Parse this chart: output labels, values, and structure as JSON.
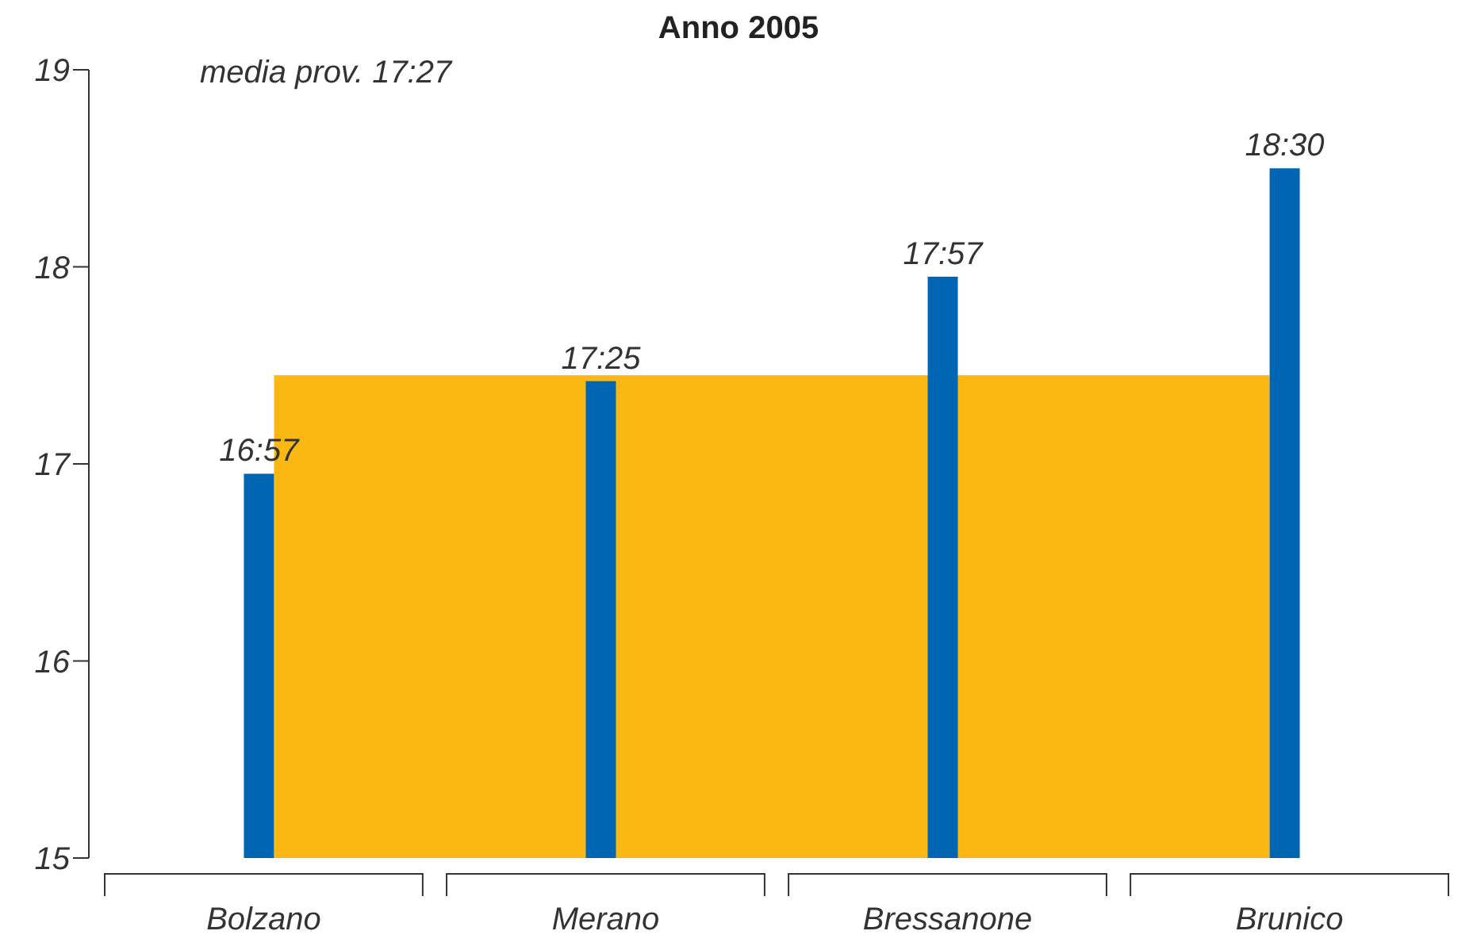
{
  "chart_data": {
    "type": "bar",
    "title": "Anno 2005",
    "categories": [
      "Bolzano",
      "Merano",
      "Bressanone",
      "Brunico"
    ],
    "series": [
      {
        "color": "#0066b3",
        "values": [
          16.95,
          17.42,
          17.95,
          18.5
        ],
        "value_labels": [
          "16:57",
          "17:25",
          "17:57",
          "18:30"
        ]
      }
    ],
    "bands": [
      {
        "axis": "y",
        "from": 15,
        "to": 17.45,
        "color": "#fbb813"
      }
    ],
    "annotations": [
      "media prov. 17:27"
    ],
    "ylim": [
      15,
      19
    ],
    "yticks": [
      15,
      16,
      17,
      18,
      19
    ]
  }
}
